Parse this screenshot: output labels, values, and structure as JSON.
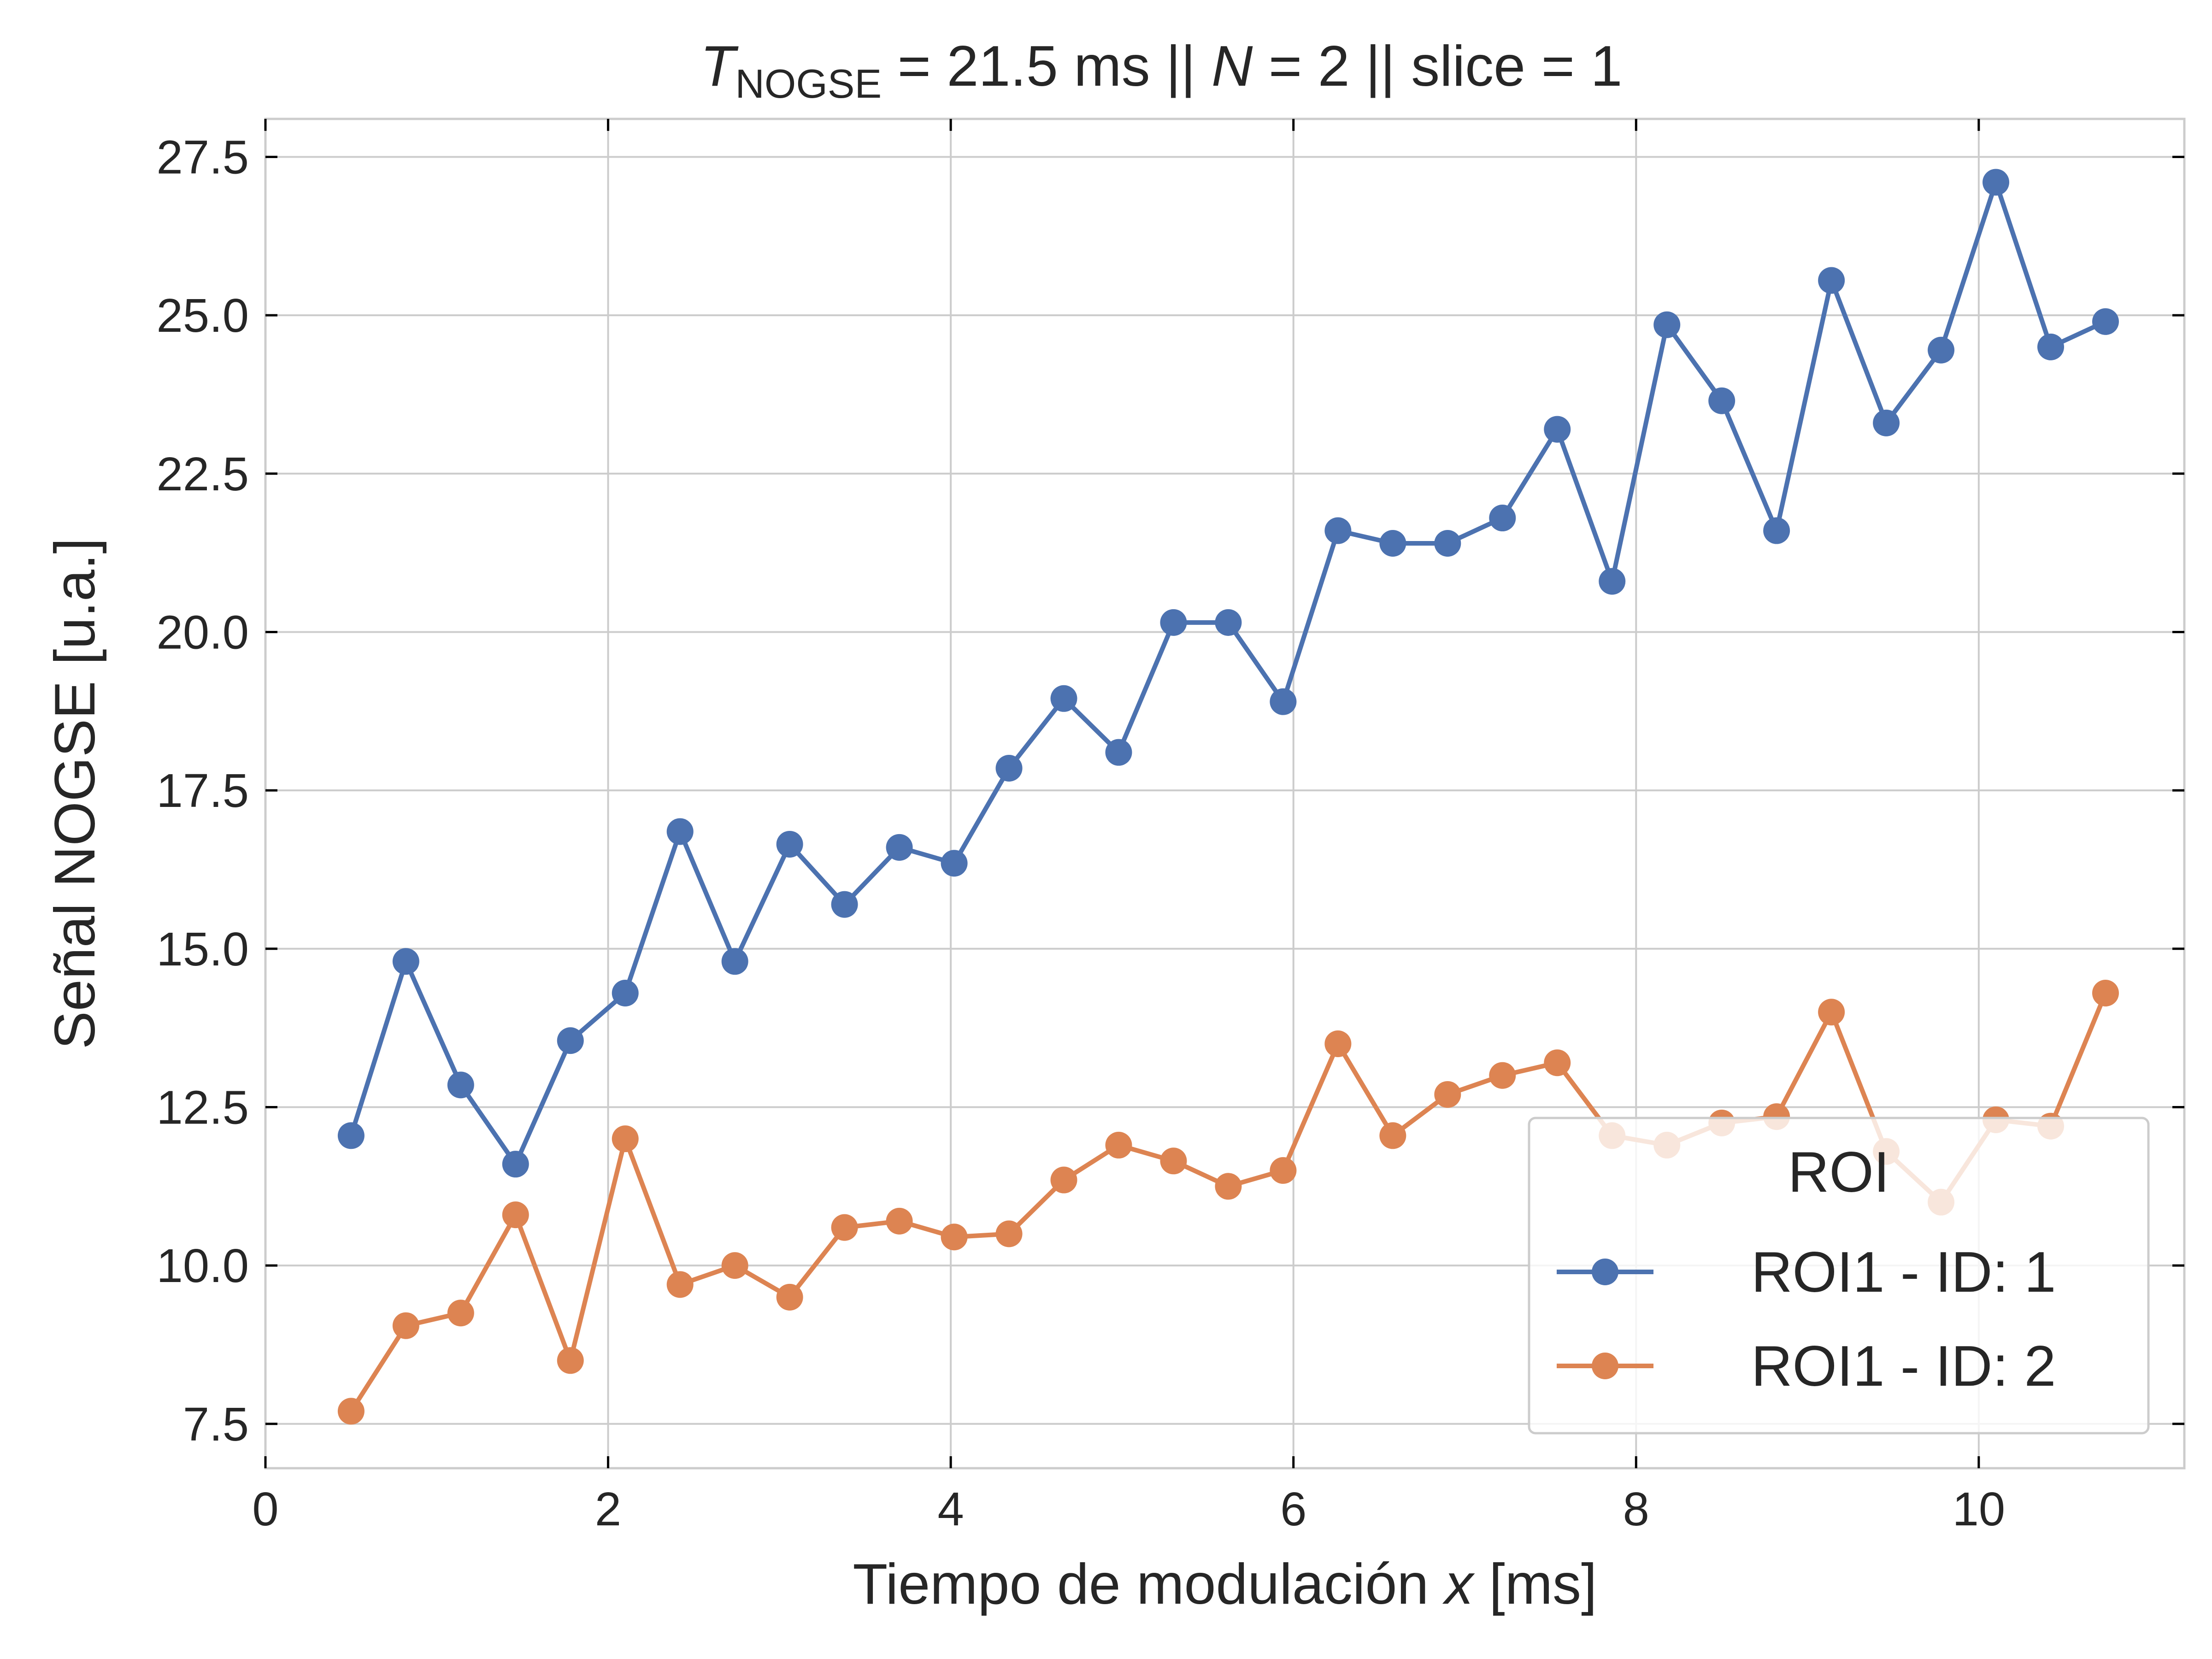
{
  "chart_data": {
    "type": "line",
    "title": {
      "symbol": "T",
      "subscript": "NOGSE",
      "rest": " = 21.5 ms  ||  ",
      "n_symbol": "N",
      "rest2": " = 2 || slice = 1"
    },
    "xlabel": {
      "prefix": "Tiempo de modulación ",
      "var": "x",
      "suffix": " [ms]"
    },
    "ylabel": "Señal NOGSE [u.a.]",
    "xlim": [
      0,
      11.2
    ],
    "ylim": [
      6.8,
      28.1
    ],
    "xticks": [
      0,
      2,
      4,
      6,
      8,
      10
    ],
    "yticks": [
      7.5,
      10.0,
      12.5,
      15.0,
      17.5,
      20.0,
      22.5,
      25.0,
      27.5
    ],
    "ytick_labels": [
      "7.5",
      "10.0",
      "12.5",
      "15.0",
      "17.5",
      "20.0",
      "22.5",
      "25.0",
      "27.5"
    ],
    "grid": true,
    "legend": {
      "title": "ROI",
      "position": "bottom-right"
    },
    "x": [
      0.5,
      0.82,
      1.14,
      1.46,
      1.78,
      2.1,
      2.42,
      2.74,
      3.06,
      3.38,
      3.7,
      4.02,
      4.34,
      4.66,
      4.98,
      5.3,
      5.62,
      5.94,
      6.26,
      6.58,
      6.9,
      7.22,
      7.54,
      7.86,
      8.18,
      8.5,
      8.82,
      9.14,
      9.46,
      9.78,
      10.1,
      10.42,
      10.74
    ],
    "series": [
      {
        "name": "ROI1 - ID: 1",
        "color": "#4c72b0",
        "values": [
          12.05,
          14.8,
          12.85,
          11.6,
          13.55,
          14.3,
          16.85,
          14.8,
          16.65,
          15.7,
          16.6,
          16.35,
          17.85,
          18.95,
          18.1,
          20.15,
          20.15,
          18.9,
          21.6,
          21.4,
          21.4,
          21.8,
          23.2,
          20.8,
          24.85,
          23.65,
          21.6,
          25.55,
          23.3,
          24.45,
          27.1,
          24.5,
          24.9
        ]
      },
      {
        "name": "ROI1 - ID: 2",
        "color": "#dd8452",
        "values": [
          7.7,
          9.05,
          9.25,
          10.8,
          8.5,
          12.0,
          9.7,
          10.0,
          9.5,
          10.6,
          10.7,
          10.45,
          10.5,
          11.35,
          11.9,
          11.65,
          11.25,
          11.5,
          13.5,
          12.05,
          12.7,
          13.0,
          13.2,
          12.05,
          11.9,
          12.25,
          12.35,
          14.0,
          11.8,
          11.0,
          12.3,
          12.2,
          14.3
        ]
      }
    ]
  }
}
